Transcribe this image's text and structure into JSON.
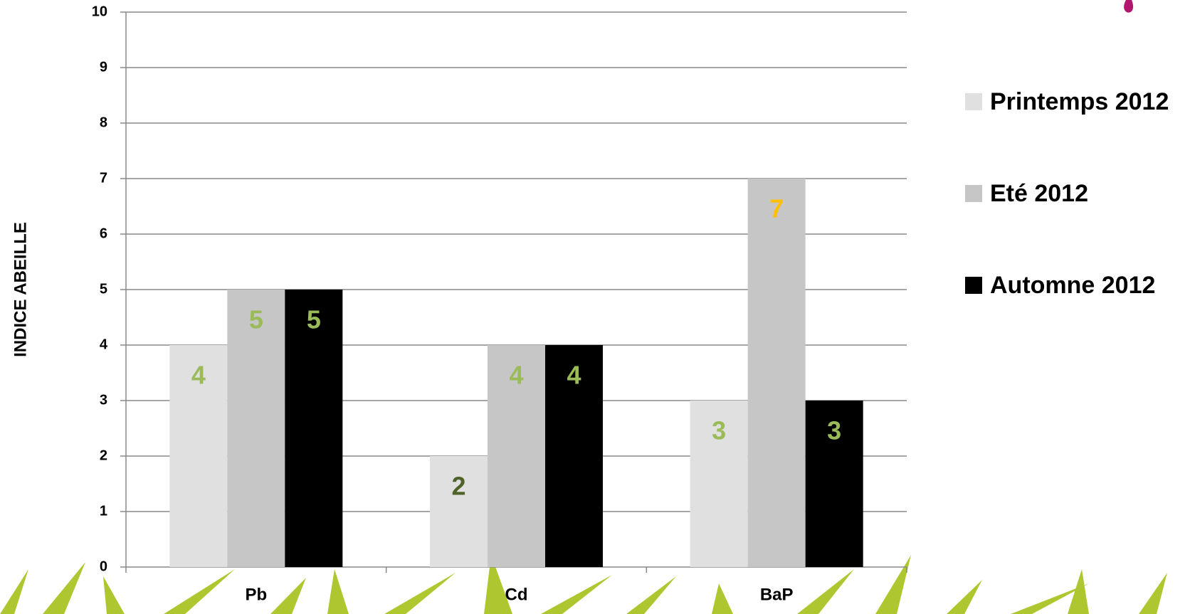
{
  "chart_data": {
    "type": "bar",
    "y_label": "INDICE ABEILLE",
    "categories": [
      "Pb",
      "Cd",
      "BaP"
    ],
    "series": [
      {
        "name": "Printemps 2012",
        "color": "#e0e0e0",
        "values": [
          4,
          2,
          3
        ],
        "label_colors": [
          "#9bbb59",
          "#4f6228",
          "#9bbb59"
        ]
      },
      {
        "name": "Eté 2012",
        "color": "#c6c6c6",
        "values": [
          5,
          4,
          7
        ],
        "label_colors": [
          "#9bbb59",
          "#9bbb59",
          "#ffc000"
        ]
      },
      {
        "name": "Automne 2012",
        "color": "#000000",
        "values": [
          5,
          4,
          3
        ],
        "label_colors": [
          "#9bbb59",
          "#9bbb59",
          "#9bbb59"
        ]
      }
    ],
    "ylim": [
      0,
      10
    ],
    "yticks": [
      0,
      1,
      2,
      3,
      4,
      5,
      6,
      7,
      8,
      9,
      10
    ],
    "grid": true,
    "legend": "right"
  }
}
